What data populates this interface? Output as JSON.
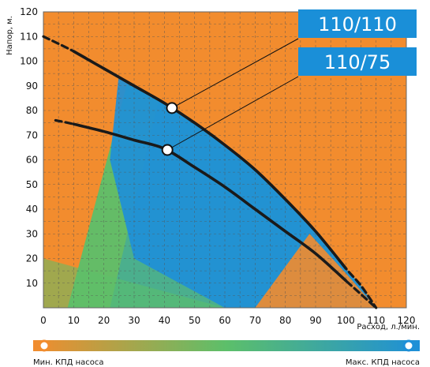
{
  "chart_data": {
    "type": "line",
    "xlabel": "Расход, л./мин.",
    "ylabel": "Напор, м.",
    "xlim": [
      0,
      120
    ],
    "ylim": [
      0,
      120
    ],
    "x_ticks": [
      "0",
      "10",
      "20",
      "30",
      "40",
      "50",
      "60",
      "70",
      "80",
      "90",
      "100",
      "110",
      "120"
    ],
    "y_ticks": [
      "10",
      "20",
      "30",
      "40",
      "50",
      "60",
      "70",
      "80",
      "90",
      "100",
      "110",
      "120"
    ],
    "grid": true,
    "series": [
      {
        "name": "110/110",
        "points": [
          [
            0,
            110
          ],
          [
            10,
            104
          ],
          [
            20,
            97
          ],
          [
            30,
            90
          ],
          [
            40,
            83
          ],
          [
            50,
            75
          ],
          [
            60,
            66
          ],
          [
            70,
            56
          ],
          [
            80,
            44
          ],
          [
            90,
            31
          ],
          [
            100,
            16
          ],
          [
            105,
            9
          ],
          [
            110,
            0
          ]
        ],
        "marker": [
          42.5,
          81
        ]
      },
      {
        "name": "110/75",
        "points": [
          [
            4,
            76
          ],
          [
            10,
            74.5
          ],
          [
            20,
            71.5
          ],
          [
            30,
            68
          ],
          [
            40,
            64.5
          ],
          [
            50,
            57
          ],
          [
            60,
            49
          ],
          [
            70,
            40
          ],
          [
            80,
            31
          ],
          [
            90,
            22
          ],
          [
            100,
            11
          ],
          [
            110,
            0
          ]
        ],
        "marker": [
          41,
          64
        ]
      }
    ],
    "color_scale": {
      "min_label": "Мин. КПД насоса",
      "max_label": "Макс. КПД насоса",
      "colors": [
        "#f28c2e",
        "#5cbf6a",
        "#1e8fd8"
      ]
    },
    "colors": {
      "orange": "#f28c2e",
      "green": "#5cbf6a",
      "blue": "#1e8fd8",
      "callout": "#1a8fd8",
      "curve": "#1a1a1a"
    }
  }
}
